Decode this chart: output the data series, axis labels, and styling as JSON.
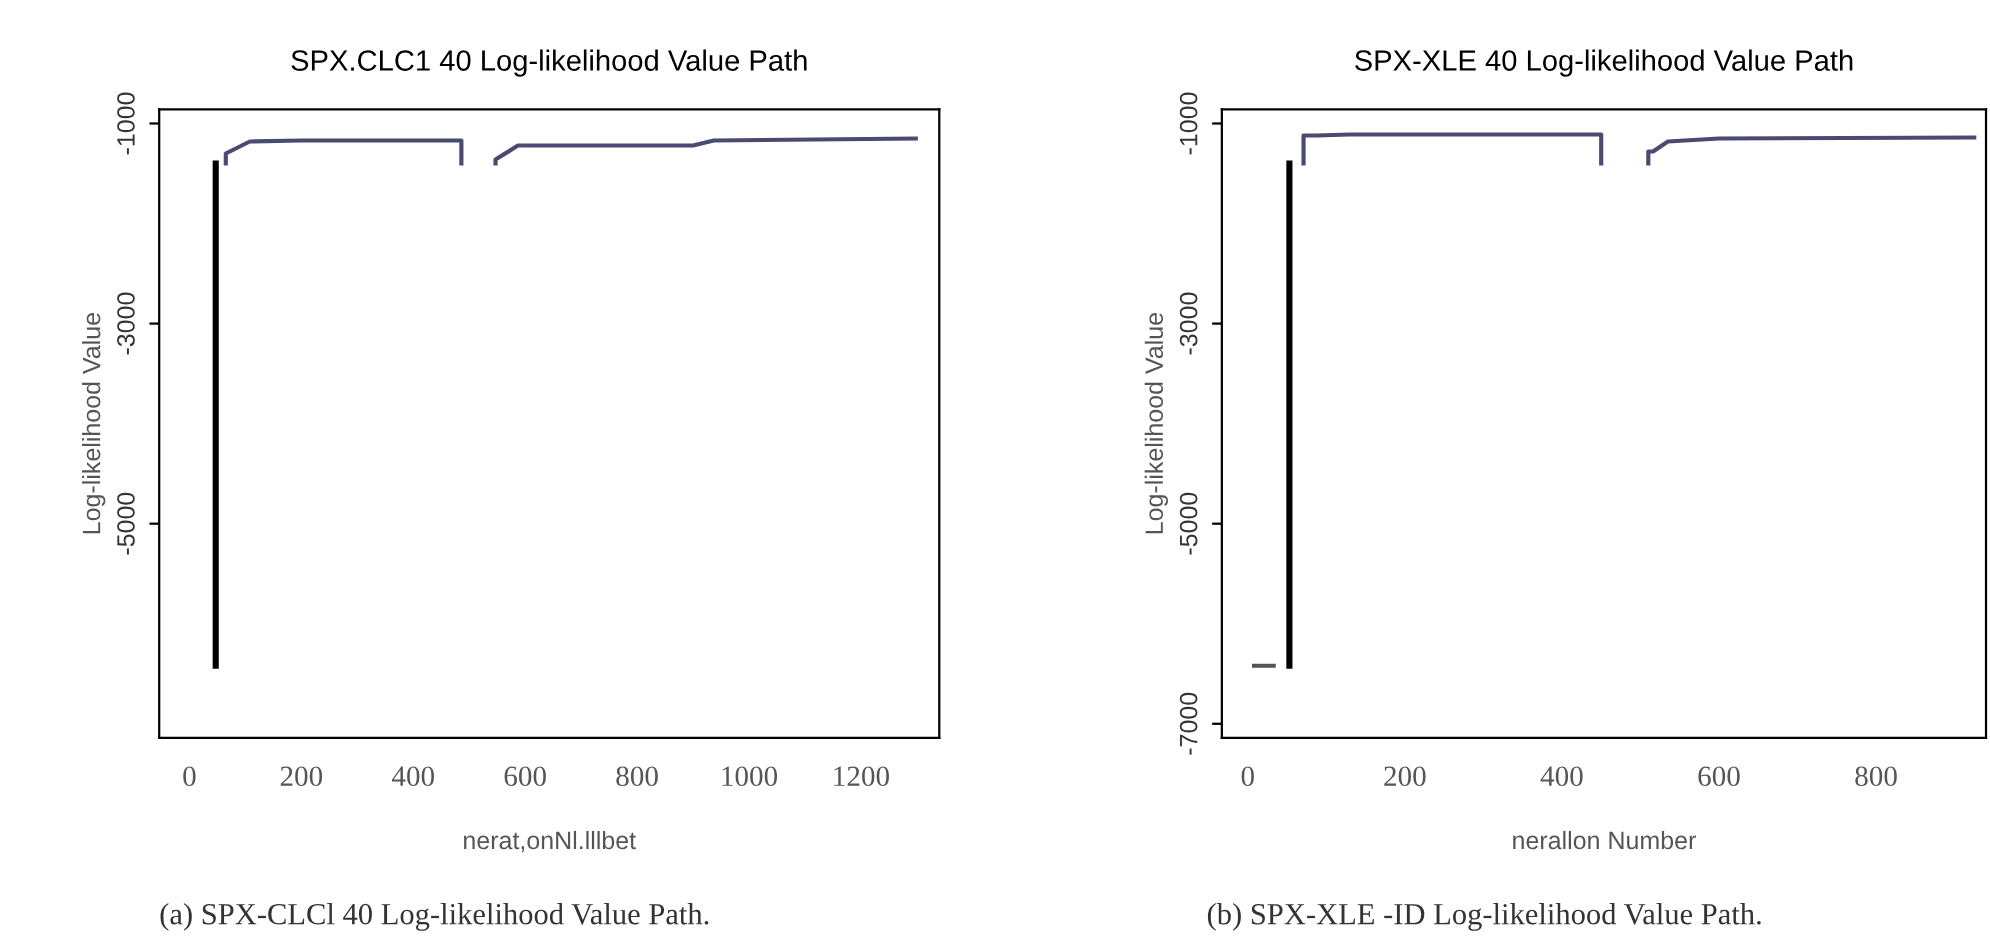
{
  "chart_data": [
    {
      "type": "line",
      "title": "SPX.CLC1 40 Log-likelihood Value Path",
      "xlabel": "nerat,onNl.lllbet",
      "ylabel": "Log-likelihood Value",
      "xlim": [
        -54,
        1340
      ],
      "ylim": [
        -7140,
        -860
      ],
      "xticks": [
        0,
        200,
        400,
        600,
        800,
        1000,
        1200
      ],
      "yticks": [
        -1000,
        -3000,
        -5000
      ],
      "grid": false,
      "legend": false,
      "series": [
        {
          "color": "#000000",
          "x": [
            47,
            47
          ],
          "values": [
            -6420,
            -1400
          ]
        },
        {
          "color": "#4a4a72",
          "x": [
            65,
            65,
            108,
            200,
            486,
            486,
            510,
            547,
            547,
            587,
            900,
            937,
            1298
          ],
          "values": [
            -1400,
            -1300,
            -1180,
            -1170,
            -1170,
            -1400,
            null,
            -1400,
            -1360,
            -1220,
            -1220,
            -1170,
            -1150
          ]
        }
      ],
      "annotations": [
        "(a) SPX-CLCl 40 Log-likelihood Value Path."
      ]
    },
    {
      "type": "line",
      "title": "SPX-XLE 40 Log-likelihood Value Path",
      "xlabel": "nerallon Number",
      "ylabel": "Log-likelihood Value",
      "xlim": [
        -33,
        940
      ],
      "ylim": [
        -7140,
        -860
      ],
      "xticks": [
        0,
        200,
        400,
        600,
        800
      ],
      "yticks": [
        -1000,
        -3000,
        -5000,
        -7000
      ],
      "grid": false,
      "legend": false,
      "series": [
        {
          "color": "#555555",
          "x": [
            8,
            33
          ],
          "values": [
            -6420,
            -6420
          ]
        },
        {
          "color": "#000000",
          "x": [
            53,
            53
          ],
          "values": [
            -6420,
            -1400
          ]
        },
        {
          "color": "#4a4a72",
          "x": [
            71,
            71,
            88,
            130,
            450,
            450,
            480,
            510,
            510,
            516,
            535,
            600,
            925
          ],
          "values": [
            -1400,
            -1120,
            -1120,
            -1110,
            -1110,
            -1400,
            null,
            -1400,
            -1280,
            -1280,
            -1180,
            -1150,
            -1140
          ]
        }
      ],
      "annotations": [
        "(b) SPX-XLE -ID Log-likelihood Value Path."
      ]
    }
  ]
}
